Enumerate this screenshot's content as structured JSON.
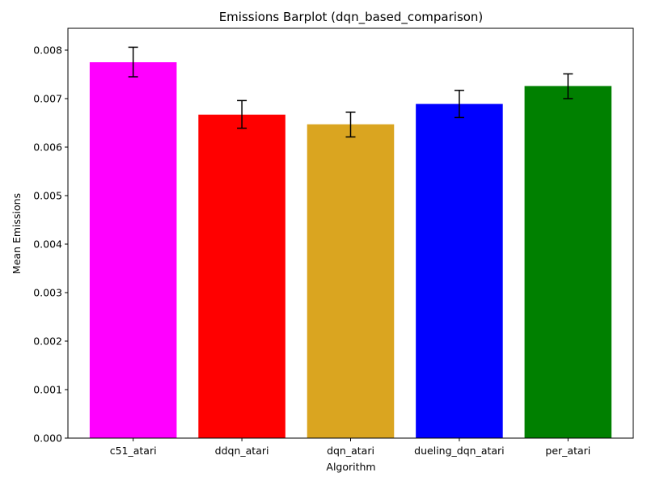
{
  "chart_data": {
    "type": "bar",
    "title": "Emissions Barplot (dqn_based_comparison)",
    "xlabel": "Algorithm",
    "ylabel": "Mean Emissions",
    "categories": [
      "c51_atari",
      "ddqn_atari",
      "dqn_atari",
      "dueling_dqn_atari",
      "per_atari"
    ],
    "values": [
      0.00775,
      0.00667,
      0.00647,
      0.00689,
      0.00726
    ],
    "error_low": [
      0.00745,
      0.00639,
      0.00621,
      0.00661,
      0.007
    ],
    "error_high": [
      0.00806,
      0.00696,
      0.00672,
      0.00717,
      0.00751
    ],
    "colors": [
      "#ff00ff",
      "#ff0000",
      "#daa520",
      "#0000ff",
      "#008000"
    ],
    "ylim": [
      0,
      0.00845
    ],
    "yticks": [
      "0.000",
      "0.001",
      "0.002",
      "0.003",
      "0.004",
      "0.005",
      "0.006",
      "0.007",
      "0.008"
    ],
    "grid": false,
    "legend": "none"
  }
}
